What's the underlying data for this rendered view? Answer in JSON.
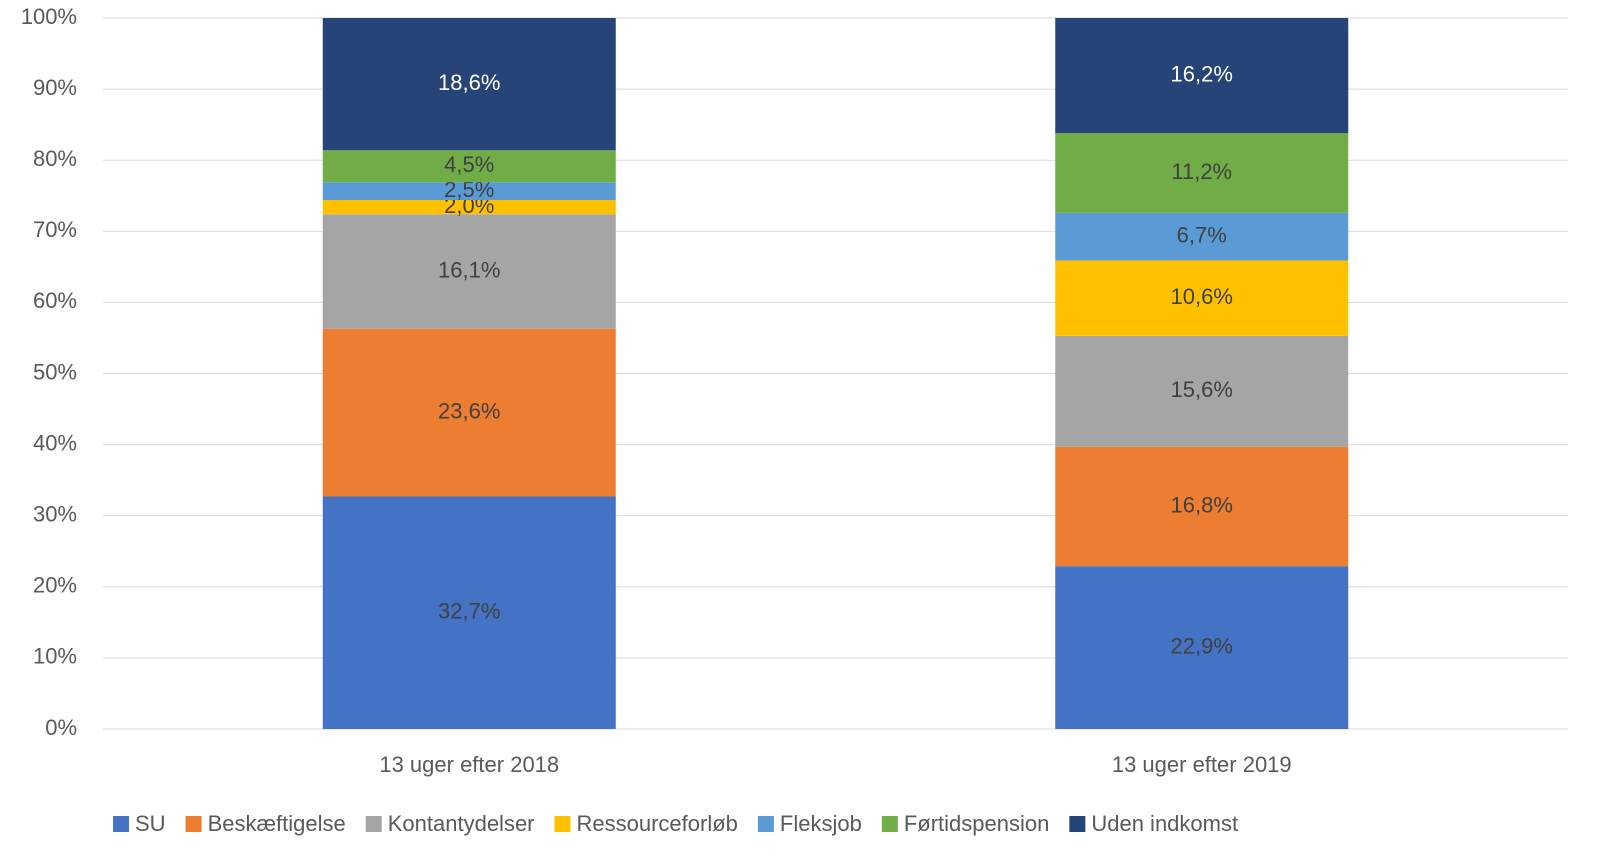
{
  "chart_data": {
    "type": "stacked_bar",
    "categories": [
      "13 uger efter 2018",
      "13 uger efter 2019"
    ],
    "series": [
      {
        "name": "SU",
        "color": "#4472c4",
        "label_color": "#404040",
        "values": [
          32.7,
          22.9
        ],
        "value_labels": [
          "32,7%",
          "22,9%"
        ]
      },
      {
        "name": "Beskæftigelse",
        "color": "#ed7d31",
        "label_color": "#404040",
        "values": [
          23.6,
          16.8
        ],
        "value_labels": [
          "23,6%",
          "16,8%"
        ]
      },
      {
        "name": "Kontantydelser",
        "color": "#a5a5a5",
        "label_color": "#404040",
        "values": [
          16.1,
          15.6
        ],
        "value_labels": [
          "16,1%",
          "15,6%"
        ]
      },
      {
        "name": "Ressourceforløb",
        "color": "#ffc000",
        "label_color": "#404040",
        "values": [
          2.0,
          10.6
        ],
        "value_labels": [
          "2,0%",
          "10,6%"
        ]
      },
      {
        "name": "Fleksjob",
        "color": "#5b9bd5",
        "label_color": "#404040",
        "values": [
          2.5,
          6.7
        ],
        "value_labels": [
          "2,5%",
          "6,7%"
        ]
      },
      {
        "name": "Førtidspension",
        "color": "#70ad47",
        "label_color": "#404040",
        "values": [
          4.5,
          11.2
        ],
        "value_labels": [
          "4,5%",
          "11,2%"
        ]
      },
      {
        "name": "Uden indkomst",
        "color": "#264478",
        "label_color": "#ffffff",
        "values": [
          18.6,
          16.2
        ],
        "value_labels": [
          "18,6%",
          "16,2%"
        ]
      }
    ],
    "ylim": [
      0,
      100
    ],
    "yticks": [
      {
        "value": 0,
        "label": "0%"
      },
      {
        "value": 10,
        "label": "10%"
      },
      {
        "value": 20,
        "label": "20%"
      },
      {
        "value": 30,
        "label": "30%"
      },
      {
        "value": 40,
        "label": "40%"
      },
      {
        "value": 50,
        "label": "50%"
      },
      {
        "value": 60,
        "label": "60%"
      },
      {
        "value": 70,
        "label": "70%"
      },
      {
        "value": 80,
        "label": "80%"
      },
      {
        "value": 90,
        "label": "90%"
      },
      {
        "value": 100,
        "label": "100%"
      }
    ],
    "grid": true,
    "legend": "bottom"
  }
}
